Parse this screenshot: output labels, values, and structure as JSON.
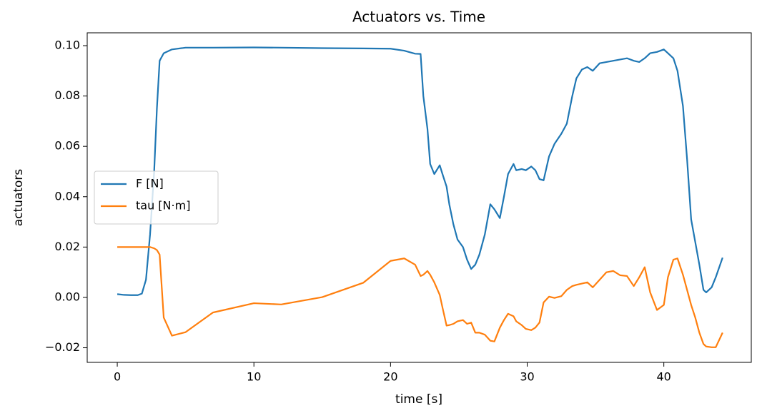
{
  "chart_data": {
    "type": "line",
    "title": "Actuators vs. Time",
    "x_label": "time [s]",
    "y_label": "actuators",
    "x": [
      0,
      0.5,
      1,
      1.5,
      1.8,
      2.1,
      2.4,
      2.7,
      2.9,
      3.1,
      3.4,
      4,
      5,
      7,
      10,
      12,
      15,
      18,
      20,
      21,
      21.8,
      22.2,
      22.4,
      22.7,
      22.9,
      23.2,
      23.6,
      23.8,
      24.1,
      24.3,
      24.6,
      24.9,
      25.3,
      25.6,
      25.9,
      26.2,
      26.5,
      26.9,
      27.3,
      27.6,
      28,
      28.3,
      28.6,
      29,
      29.2,
      29.6,
      29.9,
      30.3,
      30.6,
      30.9,
      31.2,
      31.6,
      32,
      32.5,
      32.9,
      33.3,
      33.6,
      34,
      34.4,
      34.8,
      35.3,
      35.8,
      36.3,
      36.8,
      37.3,
      37.8,
      38.2,
      38.6,
      39,
      39.5,
      40,
      40.3,
      40.7,
      41,
      41.4,
      41.7,
      42,
      42.3,
      42.6,
      42.9,
      43.1,
      43.5,
      43.8,
      44.3
    ],
    "series": [
      {
        "name": "F [N]",
        "color": "#1f77b4",
        "values": [
          0.0013,
          0.001,
          0.0009,
          0.0009,
          0.0015,
          0.007,
          0.025,
          0.05,
          0.075,
          0.094,
          0.097,
          0.0985,
          0.0992,
          0.0992,
          0.0993,
          0.0992,
          0.099,
          0.0989,
          0.0988,
          0.098,
          0.0968,
          0.0967,
          0.08,
          0.067,
          0.053,
          0.049,
          0.0525,
          0.049,
          0.044,
          0.037,
          0.029,
          0.023,
          0.02,
          0.015,
          0.0113,
          0.013,
          0.017,
          0.025,
          0.037,
          0.035,
          0.0315,
          0.04,
          0.049,
          0.053,
          0.0505,
          0.051,
          0.0505,
          0.052,
          0.0505,
          0.047,
          0.0465,
          0.056,
          0.061,
          0.065,
          0.069,
          0.08,
          0.087,
          0.0905,
          0.0915,
          0.09,
          0.093,
          0.0935,
          0.094,
          0.0945,
          0.095,
          0.094,
          0.0935,
          0.095,
          0.097,
          0.0975,
          0.0985,
          0.097,
          0.095,
          0.09,
          0.076,
          0.055,
          0.031,
          0.022,
          0.013,
          0.003,
          0.002,
          0.004,
          0.008,
          0.0158
        ]
      },
      {
        "name": "tau [N·m]",
        "color": "#ff7f0e",
        "values": [
          0.02,
          0.02,
          0.02,
          0.02,
          0.02,
          0.02,
          0.02,
          0.0195,
          0.0188,
          0.017,
          -0.008,
          -0.0152,
          -0.0138,
          -0.006,
          -0.0023,
          -0.0028,
          0.0001,
          0.0058,
          0.0145,
          0.0155,
          0.013,
          0.0085,
          0.009,
          0.0105,
          0.009,
          0.006,
          0.001,
          -0.004,
          -0.0112,
          -0.011,
          -0.0105,
          -0.0095,
          -0.009,
          -0.0105,
          -0.01,
          -0.014,
          -0.014,
          -0.0148,
          -0.0172,
          -0.0175,
          -0.012,
          -0.009,
          -0.0065,
          -0.0075,
          -0.0095,
          -0.011,
          -0.0125,
          -0.013,
          -0.012,
          -0.01,
          -0.002,
          0.0003,
          -0.0002,
          0.0005,
          0.003,
          0.0045,
          0.005,
          0.0055,
          0.006,
          0.004,
          0.007,
          0.01,
          0.0105,
          0.0088,
          0.0085,
          0.0045,
          0.008,
          0.012,
          0.002,
          -0.005,
          -0.003,
          0.008,
          0.015,
          0.0155,
          0.009,
          0.003,
          -0.003,
          -0.008,
          -0.014,
          -0.0185,
          -0.0195,
          -0.0198,
          -0.0198,
          -0.014
        ]
      }
    ],
    "xlim": [
      -2.2,
      46.4
    ],
    "xticks": [
      0,
      10,
      20,
      30,
      40
    ],
    "ylim": [
      -0.0258,
      0.1051
    ],
    "yticks": [
      {
        "value": -0.02,
        "label": "−0.02"
      },
      {
        "value": 0,
        "label": "0.00"
      },
      0.02,
      0.04,
      0.06,
      0.08,
      {
        "value": 0.1,
        "label": "0.10"
      }
    ],
    "grid": false,
    "legend": "center left"
  }
}
